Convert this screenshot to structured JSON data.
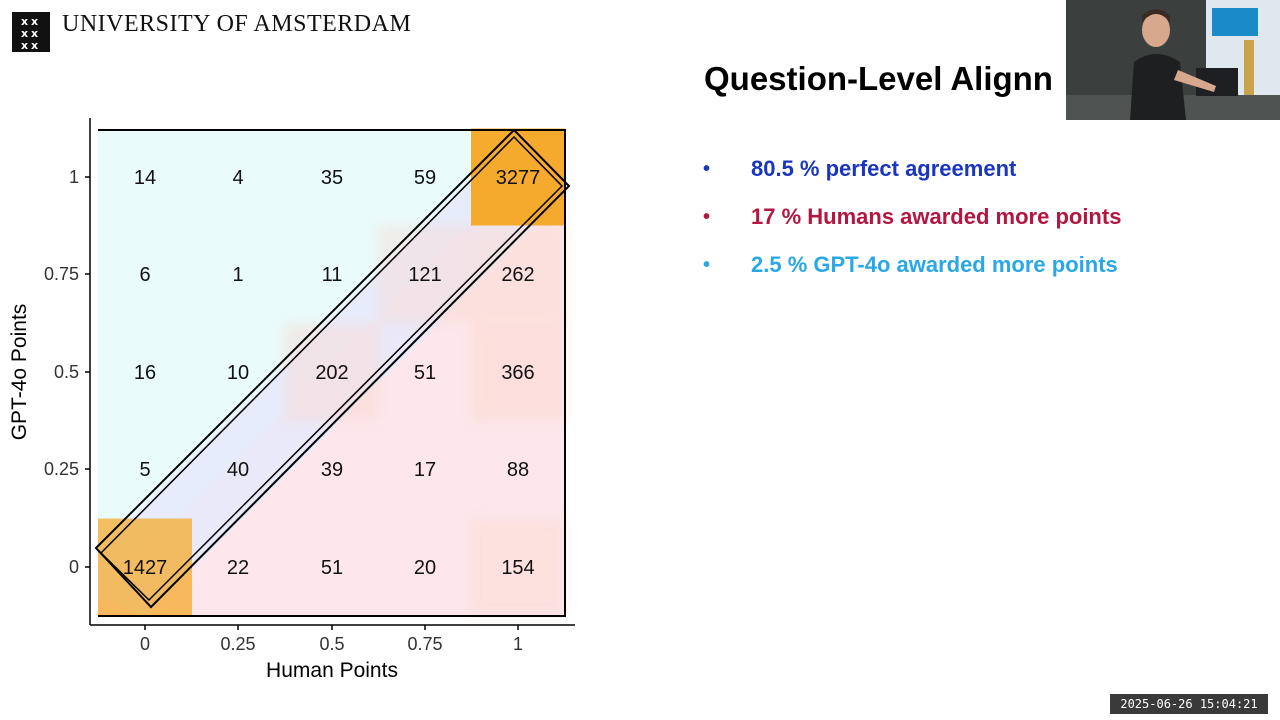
{
  "header": {
    "logo_icon": "uva-logo-icon",
    "university_name": "UNIVERSITY OF AMSTERDAM"
  },
  "slide": {
    "title": "Question-Level Alignn",
    "bullets": [
      {
        "text": "80.5 % perfect agreement",
        "color": "#1a35c0"
      },
      {
        "text": "17 % Humans awarded more points",
        "color": "#b3163e"
      },
      {
        "text": "2.5 % GPT-4o awarded more points",
        "color": "#2aa7e6"
      }
    ]
  },
  "chart_data": {
    "type": "heatmap",
    "xlabel": "Human Points",
    "ylabel": "GPT-4o Points",
    "x_ticks": [
      "0",
      "0.25",
      "0.5",
      "0.75",
      "1"
    ],
    "y_ticks": [
      "0",
      "0.25",
      "0.5",
      "0.75",
      "1"
    ],
    "rows_top_to_bottom": [
      {
        "y": "1",
        "values": [
          14,
          4,
          35,
          59,
          3277
        ]
      },
      {
        "y": "0.75",
        "values": [
          6,
          1,
          11,
          121,
          262
        ]
      },
      {
        "y": "0.5",
        "values": [
          16,
          10,
          202,
          51,
          366
        ]
      },
      {
        "y": "0.25",
        "values": [
          5,
          40,
          39,
          17,
          88
        ]
      },
      {
        "y": "0",
        "values": [
          1427,
          22,
          51,
          20,
          154
        ]
      }
    ],
    "regions": {
      "gpt_higher_color": "#eafcfc",
      "agreement_color": "#e8ebfb",
      "human_higher_color": "#fde6ea"
    },
    "highlight_color": "#f5a623"
  },
  "overlay": {
    "timestamp": "2025-06-26 15:04:21",
    "webcam_icon": "presenter-webcam-icon"
  }
}
